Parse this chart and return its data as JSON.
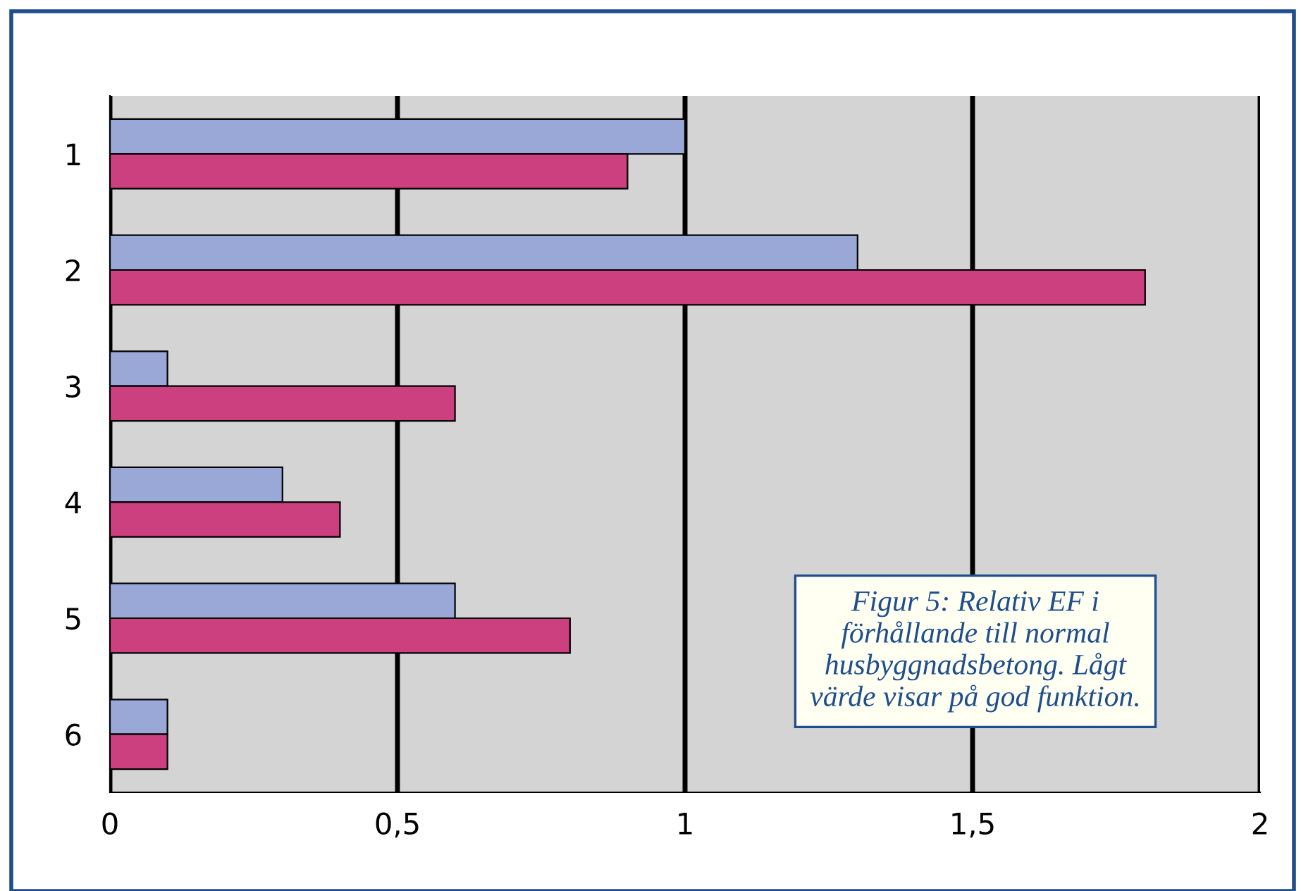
{
  "chart_data": {
    "type": "bar",
    "orientation": "horizontal",
    "categories": [
      "1",
      "2",
      "3",
      "4",
      "5",
      "6"
    ],
    "series": [
      {
        "color": "#99a8d6",
        "values": [
          1,
          1.3,
          0.1,
          0.3,
          0.6,
          0.1
        ]
      },
      {
        "color": "#cc4080",
        "values": [
          0.9,
          1.8,
          0.6,
          0.4,
          0.8,
          0.1
        ]
      }
    ],
    "xlim": [
      0,
      2
    ],
    "xticks": [
      0,
      {
        "value": 0.5,
        "label": "0,5"
      },
      1,
      {
        "value": 1.5,
        "label": "1,5"
      },
      2
    ],
    "grid": "x",
    "annotations": [
      "Figur 5: Relativ EF i\nförhållande till normal\nhusbyggnadsbetong. Lågt\nvärde visar på god funktion."
    ]
  }
}
